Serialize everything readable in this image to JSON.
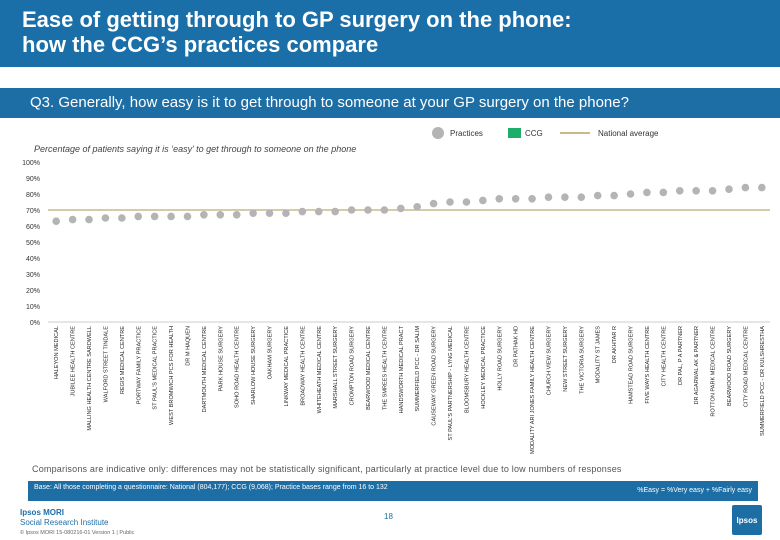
{
  "header": {
    "title_line1": "Ease of getting through to GP surgery on the phone:",
    "title_line2": "how the CCG’s practices compare"
  },
  "question": "Q3. Generally, how easy is it to get through to someone at your GP surgery on the phone?",
  "legend": {
    "practices": "Practices",
    "ccg": "CCG",
    "national": "National average"
  },
  "colors": {
    "practices": "#b4b4b4",
    "ccg": "#1fad6a",
    "national": "#c8b98a",
    "header": "#1a6fa8"
  },
  "subtitle": "Percentage of patients saying it is ‘easy’ to get through to someone on the phone",
  "chart_data": {
    "type": "scatter",
    "ylim": [
      0,
      100
    ],
    "y_ticks": [
      "0%",
      "10%",
      "20%",
      "30%",
      "40%",
      "50%",
      "60%",
      "70%",
      "80%",
      "90%",
      "100%"
    ],
    "national_average": 70,
    "categories": [
      "HALEYON MEDICAL",
      "JUBILEE HEALTH CENTRE",
      "MALLING HEALTH CENTRE SARDWELL",
      "WALFORD STREET TINDALE",
      "REGIS MEDICAL CENTRE",
      "PORTWAY FAMILY PRACTICE",
      "ST PAUL'S MEDICAL PRACTICE",
      "WEST BROMWICH PCS FOR HEALTH",
      "DR M HAQUEN",
      "DARTMOUTH MEDICAL CENTRE",
      "PARK HOUSE SURGERY",
      "SOHO ROAD HEALTH CENTRE",
      "SHARLOW HOUSE SURGERY",
      "OAKHAM SURGERY",
      "LINKWAY MEDICAL PRACTICE",
      "BROADWAY HEALTH CENTRE",
      "WHITEHEATH MEDICAL CENTRE",
      "MARSHALL STREET SURGERY",
      "CROMPTON ROAD SURGERY",
      "BEARWOOD MEDICAL CENTRE",
      "THE SMREES HEALTH CENTRE",
      "HANDSWORTH MEDICAL PRACT",
      "SUMMERFIELD PCC - DR SALIM",
      "CAUSEWAY GREEN ROAD SURGERY",
      "ST PAUL'S PARTNERSHIP - LYNG MEDICAL",
      "BLOOMSBURY HEALTH CENTRE",
      "HOCKLEY MEDICAL PRACTICE",
      "HOLLY ROAD SURGERY",
      "DR PATHAK HD",
      "MODALITY ARI JONES FAMILY HEALTH CENTRE",
      "CHURCH VIEW SURGERY",
      "NEW STREET SURGERY",
      "THE VICTORIA SURGERY",
      "MODALITY ST JAMES",
      "DR AKHTAR R",
      "HAMSTEAD ROAD SURGERY",
      "FIVE WAYS HEALTH CENTRE",
      "CITY HEALTH CENTRE",
      "DR PAL, P A PARTNER",
      "DR AGARWAL AK & PARTNER",
      "ROTTON PARK MEDICAL CENTRE",
      "BEARWOOD ROAD SURGERY",
      "CITY ROAD MEDICAL CENTRE",
      "SUMMERFIELD PCC - DR KULSHRESTHA"
    ],
    "values": [
      63,
      64,
      64,
      65,
      65,
      66,
      66,
      66,
      66,
      67,
      67,
      67,
      68,
      68,
      68,
      69,
      69,
      69,
      70,
      70,
      70,
      71,
      72,
      74,
      75,
      75,
      76,
      77,
      77,
      77,
      78,
      78,
      78,
      79,
      79,
      80,
      81,
      81,
      82,
      82,
      82,
      83,
      84,
      84
    ],
    "ccg_indices": [],
    "ccg_value": null
  },
  "note": "Comparisons are indicative only: differences may not be statistically significant, particularly at practice level due to low numbers of responses",
  "base": "Base: All those completing a questionnaire: National (804,177); CCG (9,068); Practice bases range from 16 to 132",
  "formula": "%Easy = %Very easy + %Fairly easy",
  "logo": {
    "line1": "Ipsos MORI",
    "line2": "Social Research Institute",
    "mark": "Ipsos"
  },
  "footer": "© Ipsos MORI     15-080216-01 Version 1 | Public",
  "page_number": "18"
}
